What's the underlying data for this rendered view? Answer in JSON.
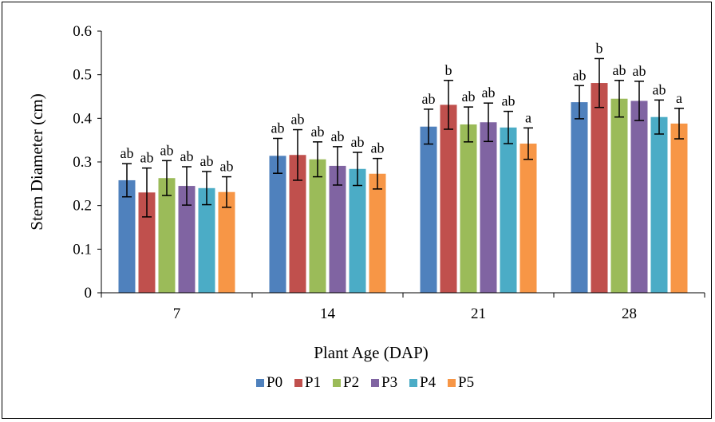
{
  "chart_data": {
    "type": "bar",
    "xlabel": "Plant Age (DAP)",
    "ylabel": "Stem Diameter (cm)",
    "ylim": [
      0,
      0.6
    ],
    "yticks": [
      "0",
      "0.1",
      "0.2",
      "0.3",
      "0.4",
      "0.5",
      "0.6"
    ],
    "grid": false,
    "legend_position": "bottom",
    "categories": [
      "7",
      "14",
      "21",
      "28"
    ],
    "series": [
      {
        "name": "P0",
        "color": "#4f81bd",
        "values": [
          0.258,
          0.314,
          0.381,
          0.437
        ],
        "errors": [
          0.038,
          0.04,
          0.04,
          0.038
        ],
        "letters": [
          "ab",
          "ab",
          "ab",
          "ab"
        ]
      },
      {
        "name": "P1",
        "color": "#c0504d",
        "values": [
          0.23,
          0.316,
          0.431,
          0.481
        ],
        "errors": [
          0.056,
          0.058,
          0.056,
          0.056
        ],
        "letters": [
          "ab",
          "ab",
          "b",
          "b"
        ]
      },
      {
        "name": "P2",
        "color": "#9bbb59",
        "values": [
          0.263,
          0.306,
          0.386,
          0.445
        ],
        "errors": [
          0.04,
          0.04,
          0.04,
          0.042
        ],
        "letters": [
          "ab",
          "ab",
          "ab",
          "ab"
        ]
      },
      {
        "name": "P3",
        "color": "#8064a2",
        "values": [
          0.245,
          0.291,
          0.391,
          0.44
        ],
        "errors": [
          0.044,
          0.044,
          0.044,
          0.045
        ],
        "letters": [
          "ab",
          "ab",
          "ab",
          "ab"
        ]
      },
      {
        "name": "P4",
        "color": "#4bacc6",
        "values": [
          0.24,
          0.284,
          0.379,
          0.403
        ],
        "errors": [
          0.038,
          0.038,
          0.037,
          0.039
        ],
        "letters": [
          "ab",
          "ab",
          "ab",
          "ab"
        ]
      },
      {
        "name": "P5",
        "color": "#f79646",
        "values": [
          0.231,
          0.273,
          0.342,
          0.388
        ],
        "errors": [
          0.035,
          0.035,
          0.036,
          0.035
        ],
        "letters": [
          "ab",
          "ab",
          "a",
          "a"
        ]
      }
    ]
  }
}
